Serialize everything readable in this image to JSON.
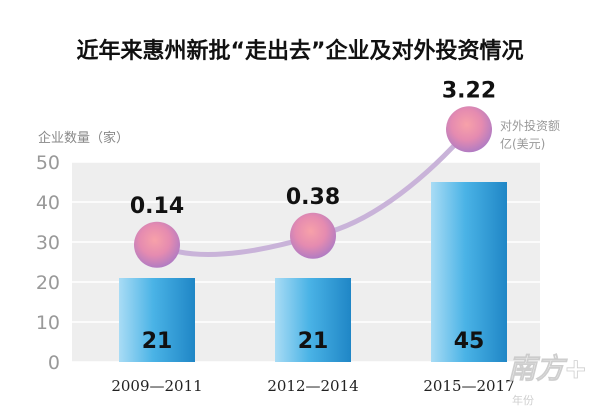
{
  "title": "近年来惠州新批“走出去”企业及对外投资情况",
  "chart_data": {
    "type": "bar",
    "title": "近年来惠州新批“走出去”企业及对外投资情况",
    "categories": [
      "2009—2011",
      "2012—2014",
      "2015—2017"
    ],
    "xlabel": "年份",
    "ylabel": "企业数量（家）",
    "ylim": [
      0,
      50
    ],
    "yticks": [
      0,
      10,
      20,
      30,
      40,
      50
    ],
    "grid": true,
    "series": [
      {
        "name": "企业数量（家）",
        "type": "bar",
        "values": [
          21,
          21,
          45
        ],
        "data_labels": [
          "21",
          "21",
          "45"
        ],
        "color": "#3fa9dc"
      },
      {
        "name": "对外投资额亿(美元)",
        "type": "line",
        "values": [
          0.14,
          0.38,
          3.22
        ],
        "data_labels": [
          "0.14",
          "0.38",
          "3.22"
        ],
        "color": "#c9b3d9"
      }
    ],
    "right_axis_label": [
      "对外投资额",
      "亿(美元)"
    ]
  },
  "watermark": "南方+"
}
